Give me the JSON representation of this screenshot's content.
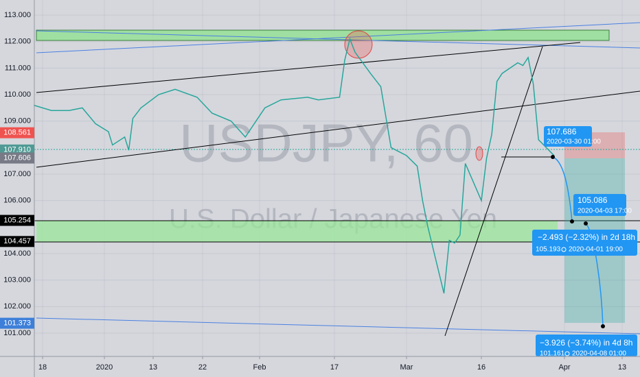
{
  "chart_data": {
    "type": "line",
    "title": "USDJPY, 60",
    "subtitle": "U.S. Dollar / Japanese Yen",
    "x": [
      "2019-12-16",
      "2019-12-18",
      "2019-12-20",
      "2019-12-24",
      "2019-12-27",
      "2019-12-30",
      "2020-01-02",
      "2020-01-03",
      "2020-01-06",
      "2020-01-07",
      "2020-01-08",
      "2020-01-10",
      "2020-01-14",
      "2020-01-17",
      "2020-01-21",
      "2020-01-24",
      "2020-01-28",
      "2020-01-31",
      "2020-02-04",
      "2020-02-07",
      "2020-02-12",
      "2020-02-14",
      "2020-02-18",
      "2020-02-19",
      "2020-02-20",
      "2020-02-21",
      "2020-02-24",
      "2020-02-26",
      "2020-02-28",
      "2020-03-02",
      "2020-03-04",
      "2020-03-05",
      "2020-03-06",
      "2020-03-09",
      "2020-03-10",
      "2020-03-11",
      "2020-03-12",
      "2020-03-13",
      "2020-03-16",
      "2020-03-17",
      "2020-03-18",
      "2020-03-19",
      "2020-03-20",
      "2020-03-23",
      "2020-03-24",
      "2020-03-25",
      "2020-03-26",
      "2020-03-27",
      "2020-03-30"
    ],
    "series": [
      {
        "color": "#26a69a",
        "values": [
          109.6,
          109.5,
          109.4,
          109.4,
          109.5,
          108.9,
          108.6,
          108.1,
          108.4,
          107.9,
          109.1,
          109.5,
          110.0,
          110.2,
          109.9,
          109.3,
          109.0,
          108.4,
          109.5,
          109.8,
          109.9,
          109.8,
          109.9,
          111.3,
          112.1,
          111.6,
          110.8,
          110.3,
          108.0,
          107.7,
          107.3,
          106.0,
          105.0,
          102.5,
          104.5,
          104.4,
          104.7,
          107.4,
          106.0,
          107.6,
          108.5,
          110.5,
          110.8,
          111.2,
          111.1,
          111.4,
          110.4,
          108.3,
          107.7
        ]
      }
    ],
    "ylim": [
      100.12,
      113.57
    ],
    "yticks": [
      {
        "value": 101,
        "label": "101.000"
      },
      {
        "value": 102,
        "label": "102.000"
      },
      {
        "value": 103,
        "label": "103.000"
      },
      {
        "value": 104,
        "label": "104.000"
      },
      {
        "value": 106,
        "label": "106.000"
      },
      {
        "value": 107,
        "label": "107.000"
      },
      {
        "value": 109,
        "label": "109.000"
      },
      {
        "value": 110,
        "label": "110.000"
      },
      {
        "value": 111,
        "label": "111.000"
      },
      {
        "value": 112,
        "label": "112.000"
      },
      {
        "value": 113,
        "label": "113.000"
      }
    ],
    "xticks": [
      {
        "value": "2019-12-18",
        "label": "18"
      },
      {
        "value": "2020-01-01",
        "label": "2020"
      },
      {
        "value": "2020-01-13",
        "label": "13"
      },
      {
        "value": "2020-01-22",
        "label": "22"
      },
      {
        "value": "2020-02-03",
        "label": "Feb"
      },
      {
        "value": "2020-02-17",
        "label": "17"
      },
      {
        "value": "2020-03-02",
        "label": "Mar"
      },
      {
        "value": "2020-03-16",
        "label": "16"
      },
      {
        "value": "2020-04-01",
        "label": "Apr"
      },
      {
        "value": "2020-04-13",
        "label": "13"
      }
    ],
    "grid": true,
    "price_labels": [
      {
        "value": 108.561,
        "label": "108.561",
        "color": "#ef5350"
      },
      {
        "value": 107.91,
        "label": "107.910",
        "color": "#4f9a94"
      },
      {
        "value": 107.606,
        "label": "107.606",
        "color": "#787b86"
      },
      {
        "value": 105.254,
        "label": "105.254",
        "color": "#000000"
      },
      {
        "value": 104.457,
        "label": "104.457",
        "color": "#000000"
      },
      {
        "value": 101.373,
        "label": "101.373",
        "color": "#3d7fd9"
      }
    ],
    "annotations": [
      "107.686",
      "2020-03-30 01:00",
      "105.086",
      "2020-04-03 17:00",
      "−2.493 (−2.32%) in 2d 18h",
      "105.193",
      "2020-04-01 19:00",
      "−3.926 (−3.74%) in 4d 8h",
      "101.161",
      "2020-04-08 01:00"
    ]
  }
}
